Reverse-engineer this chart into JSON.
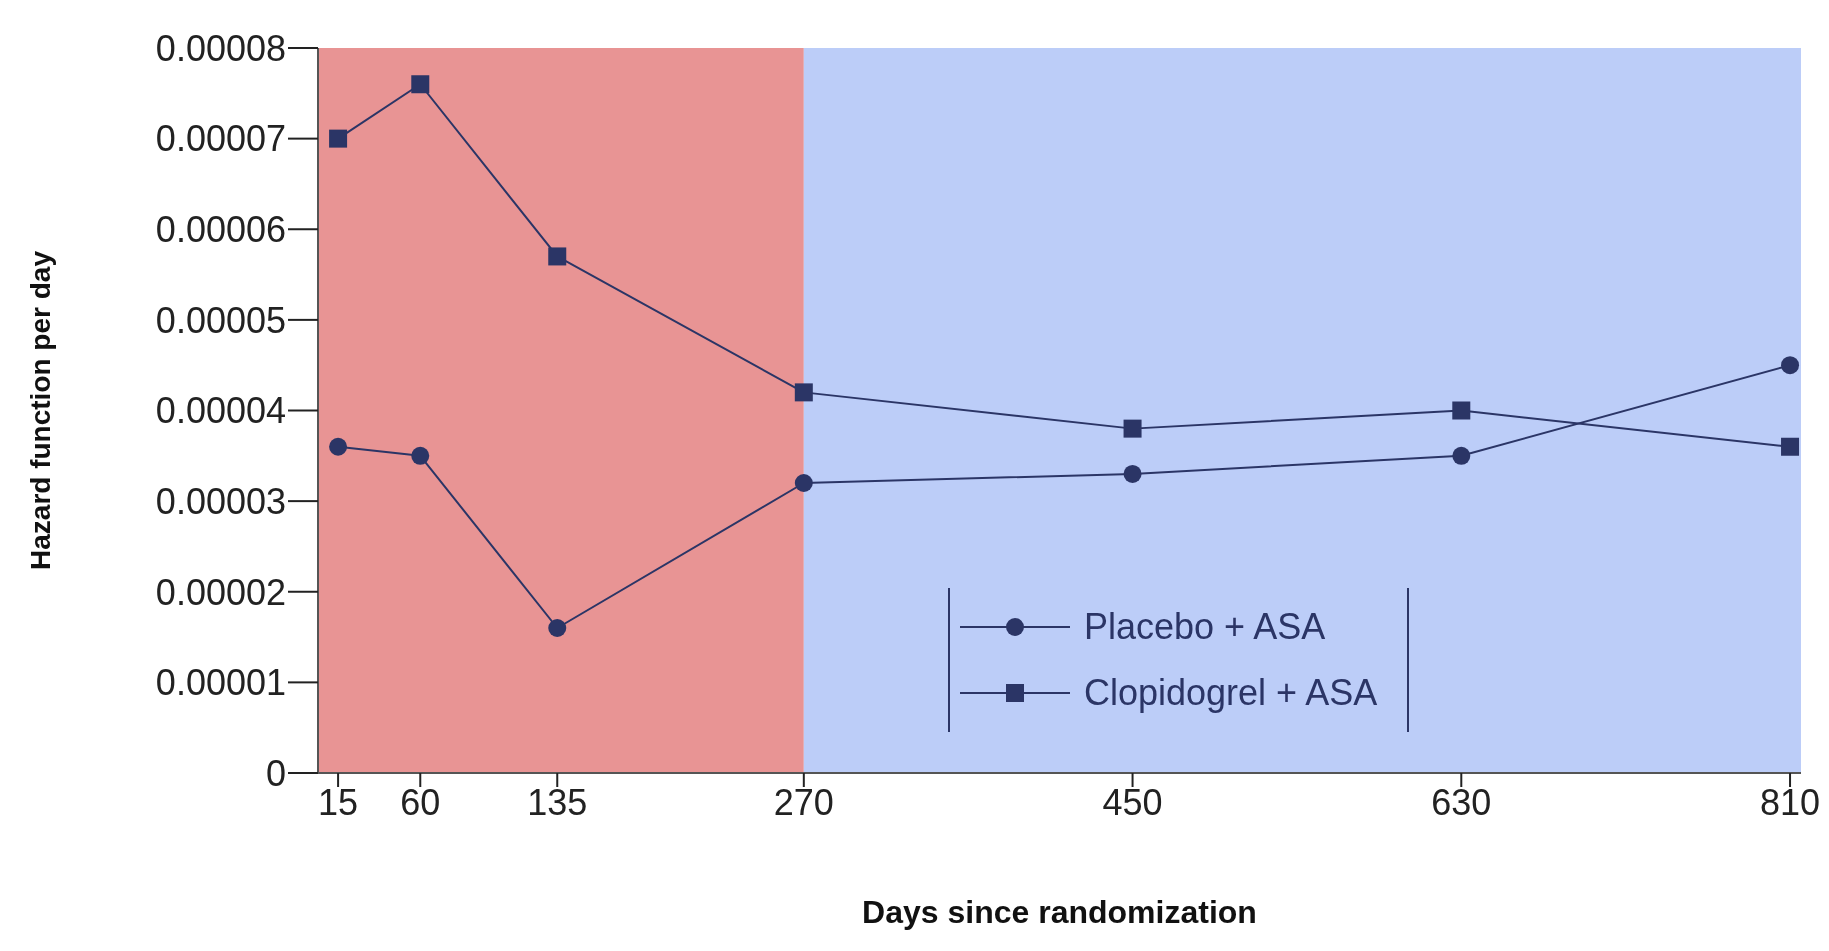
{
  "chart_data": {
    "type": "line",
    "xlabel": "Days since randomization",
    "ylabel": "Hazard function per day",
    "x": [
      15,
      60,
      135,
      270,
      450,
      630,
      810
    ],
    "series": [
      {
        "name": "Placebo + ASA",
        "color": "#2b3566",
        "marker": "circle",
        "values": [
          3.6e-05,
          3.5e-05,
          1.6e-05,
          3.2e-05,
          3.3e-05,
          3.5e-05,
          4.5e-05
        ]
      },
      {
        "name": "Clopidogrel + ASA",
        "color": "#2b3566",
        "marker": "square",
        "values": [
          7e-05,
          7.6e-05,
          5.7e-05,
          4.2e-05,
          3.8e-05,
          4e-05,
          3.6e-05
        ]
      }
    ],
    "xlim": [
      4,
      816
    ],
    "xticks": [
      15,
      60,
      135,
      270,
      450,
      630,
      810
    ],
    "ylim": [
      0,
      8e-05
    ],
    "yticks": [
      0,
      {
        "value": 1e-05,
        "label": "0.00001"
      },
      {
        "value": 2e-05,
        "label": "0.00002"
      },
      {
        "value": 3e-05,
        "label": "0.00003"
      },
      {
        "value": 4e-05,
        "label": "0.00004"
      },
      {
        "value": 5e-05,
        "label": "0.00005"
      },
      {
        "value": 6e-05,
        "label": "0.00006"
      },
      {
        "value": 7e-05,
        "label": "0.00007"
      },
      {
        "value": 8e-05,
        "label": "0.00008"
      }
    ],
    "bands": [
      {
        "axis": "x",
        "from": 4,
        "to": 270,
        "color": "#e89494"
      },
      {
        "axis": "x",
        "from": 270,
        "to": 816,
        "color": "#bccdf8"
      }
    ],
    "grid": false,
    "legend": "bottom",
    "line_style": "solid"
  }
}
